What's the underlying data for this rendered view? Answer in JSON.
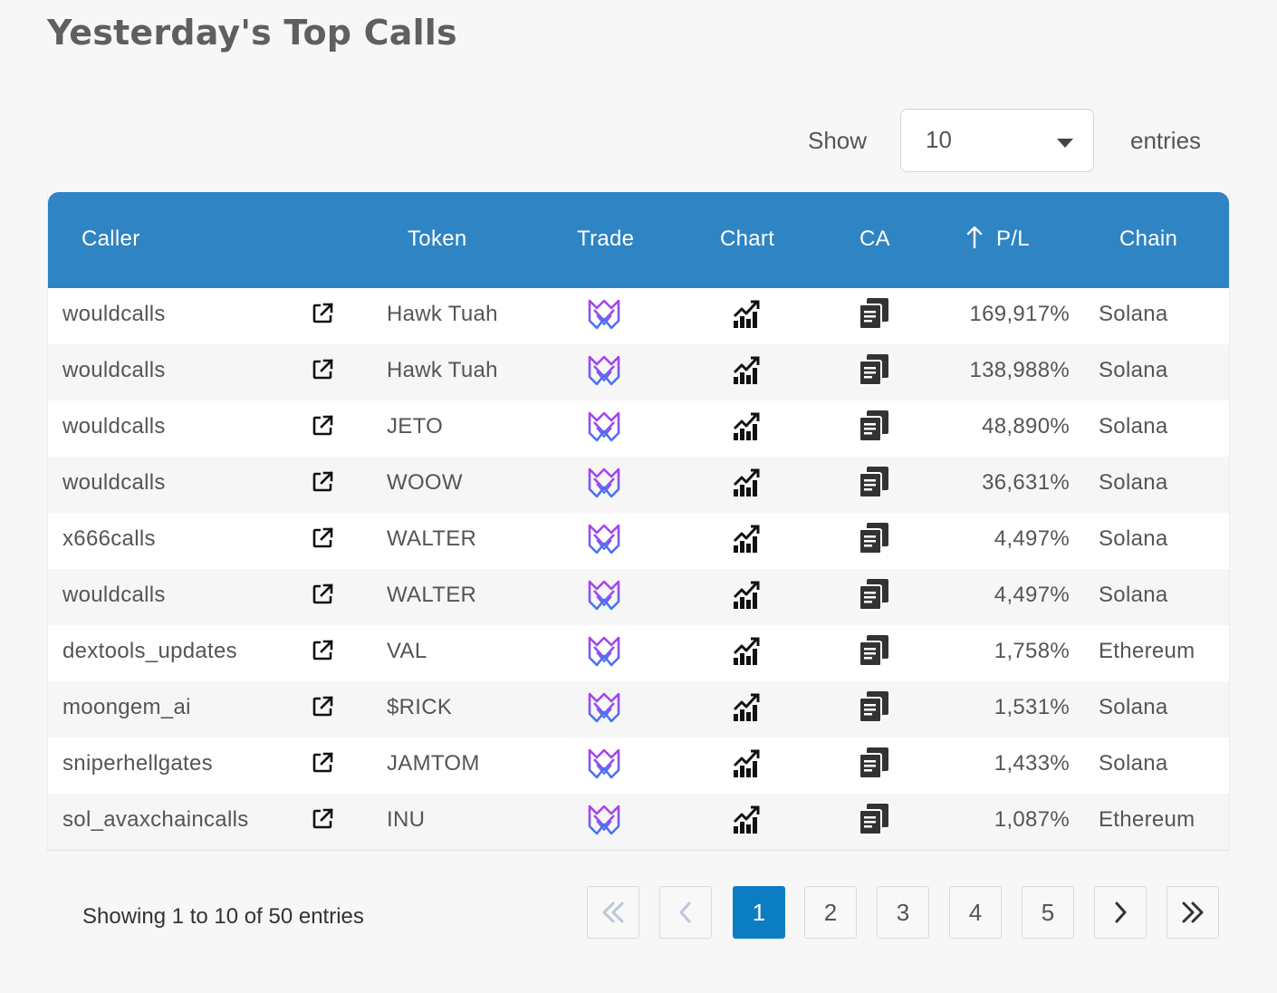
{
  "page": {
    "title": "Yesterday's Top Calls"
  },
  "length_control": {
    "show_label": "Show",
    "selected": "10",
    "entries_label": "entries"
  },
  "table": {
    "headers": {
      "caller": "Caller",
      "token": "Token",
      "trade": "Trade",
      "chart": "Chart",
      "ca": "CA",
      "pl": "P/L",
      "chain": "Chain"
    },
    "sort_icon": "arrow-up-icon",
    "row_icons": {
      "link": "external-link-icon",
      "trade": "trade-logo-icon",
      "chart": "chart-icon",
      "ca": "copy-icon"
    },
    "rows": [
      {
        "caller": "wouldcalls",
        "token": "Hawk Tuah",
        "pl": "169,917%",
        "chain": "Solana"
      },
      {
        "caller": "wouldcalls",
        "token": "Hawk Tuah",
        "pl": "138,988%",
        "chain": "Solana"
      },
      {
        "caller": "wouldcalls",
        "token": "JETO",
        "pl": "48,890%",
        "chain": "Solana"
      },
      {
        "caller": "wouldcalls",
        "token": "WOOW",
        "pl": "36,631%",
        "chain": "Solana"
      },
      {
        "caller": "x666calls",
        "token": "WALTER",
        "pl": "4,497%",
        "chain": "Solana"
      },
      {
        "caller": "wouldcalls",
        "token": "WALTER",
        "pl": "4,497%",
        "chain": "Solana"
      },
      {
        "caller": "dextools_updates",
        "token": "VAL",
        "pl": "1,758%",
        "chain": "Ethereum"
      },
      {
        "caller": "moongem_ai",
        "token": "$RICK",
        "pl": "1,531%",
        "chain": "Solana"
      },
      {
        "caller": "sniperhellgates",
        "token": "JAMTOM",
        "pl": "1,433%",
        "chain": "Solana"
      },
      {
        "caller": "sol_avaxchaincalls",
        "token": "INU",
        "pl": "1,087%",
        "chain": "Ethereum"
      }
    ]
  },
  "footer": {
    "info": "Showing 1 to 10 of 50 entries",
    "pages": [
      "1",
      "2",
      "3",
      "4",
      "5"
    ],
    "active_page": "1",
    "nav_icons": {
      "first": "double-chevron-left-icon",
      "prev": "chevron-left-icon",
      "next": "chevron-right-icon",
      "last": "double-chevron-right-icon"
    }
  },
  "colors": {
    "header_bg": "#2f84c3",
    "active_page": "#0b7ec3",
    "trade_logo_top": "#b43cf0",
    "trade_logo_bottom": "#3c78f0"
  }
}
